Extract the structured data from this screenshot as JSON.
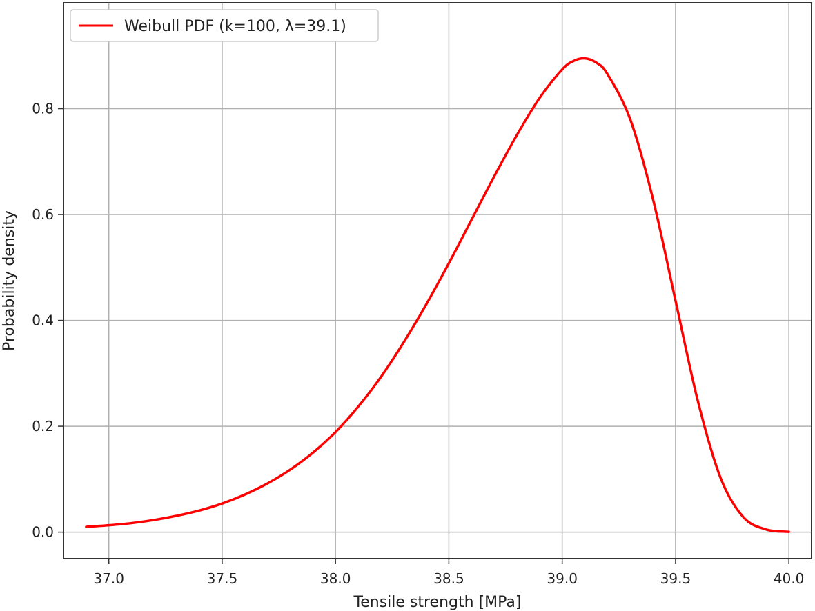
{
  "chart_data": {
    "type": "line",
    "title": "",
    "xlabel": "Tensile strength [MPa]",
    "ylabel": "Probability density",
    "xlim": [
      36.8,
      40.1
    ],
    "ylim": [
      -0.05,
      1.0
    ],
    "xticks": [
      37.0,
      37.5,
      38.0,
      38.5,
      39.0,
      39.5,
      40.0
    ],
    "xtick_labels": [
      "37.0",
      "37.5",
      "38.0",
      "38.5",
      "39.0",
      "39.5",
      "40.0"
    ],
    "yticks": [
      0.0,
      0.2,
      0.4,
      0.6,
      0.8
    ],
    "ytick_labels": [
      "0.0",
      "0.2",
      "0.4",
      "0.6",
      "0.8"
    ],
    "grid": true,
    "legend": {
      "position": "top-left"
    },
    "series": [
      {
        "name": "Weibull PDF (k=100, λ=39.1)",
        "color": "#ff0000",
        "x": [
          36.9,
          37.0,
          37.1,
          37.2,
          37.3,
          37.4,
          37.5,
          37.6,
          37.7,
          37.8,
          37.9,
          38.0,
          38.1,
          38.2,
          38.3,
          38.4,
          38.5,
          38.6,
          38.7,
          38.8,
          38.9,
          39.0,
          39.05,
          39.1,
          39.15,
          39.2,
          39.3,
          39.4,
          39.5,
          39.6,
          39.7,
          39.8,
          39.9,
          40.0
        ],
        "y": [
          0.01,
          0.013,
          0.017,
          0.023,
          0.031,
          0.041,
          0.054,
          0.071,
          0.092,
          0.118,
          0.15,
          0.189,
          0.237,
          0.293,
          0.358,
          0.43,
          0.508,
          0.59,
          0.672,
          0.75,
          0.82,
          0.874,
          0.89,
          0.895,
          0.887,
          0.865,
          0.78,
          0.63,
          0.437,
          0.245,
          0.101,
          0.028,
          0.005,
          0.0005
        ]
      }
    ]
  }
}
